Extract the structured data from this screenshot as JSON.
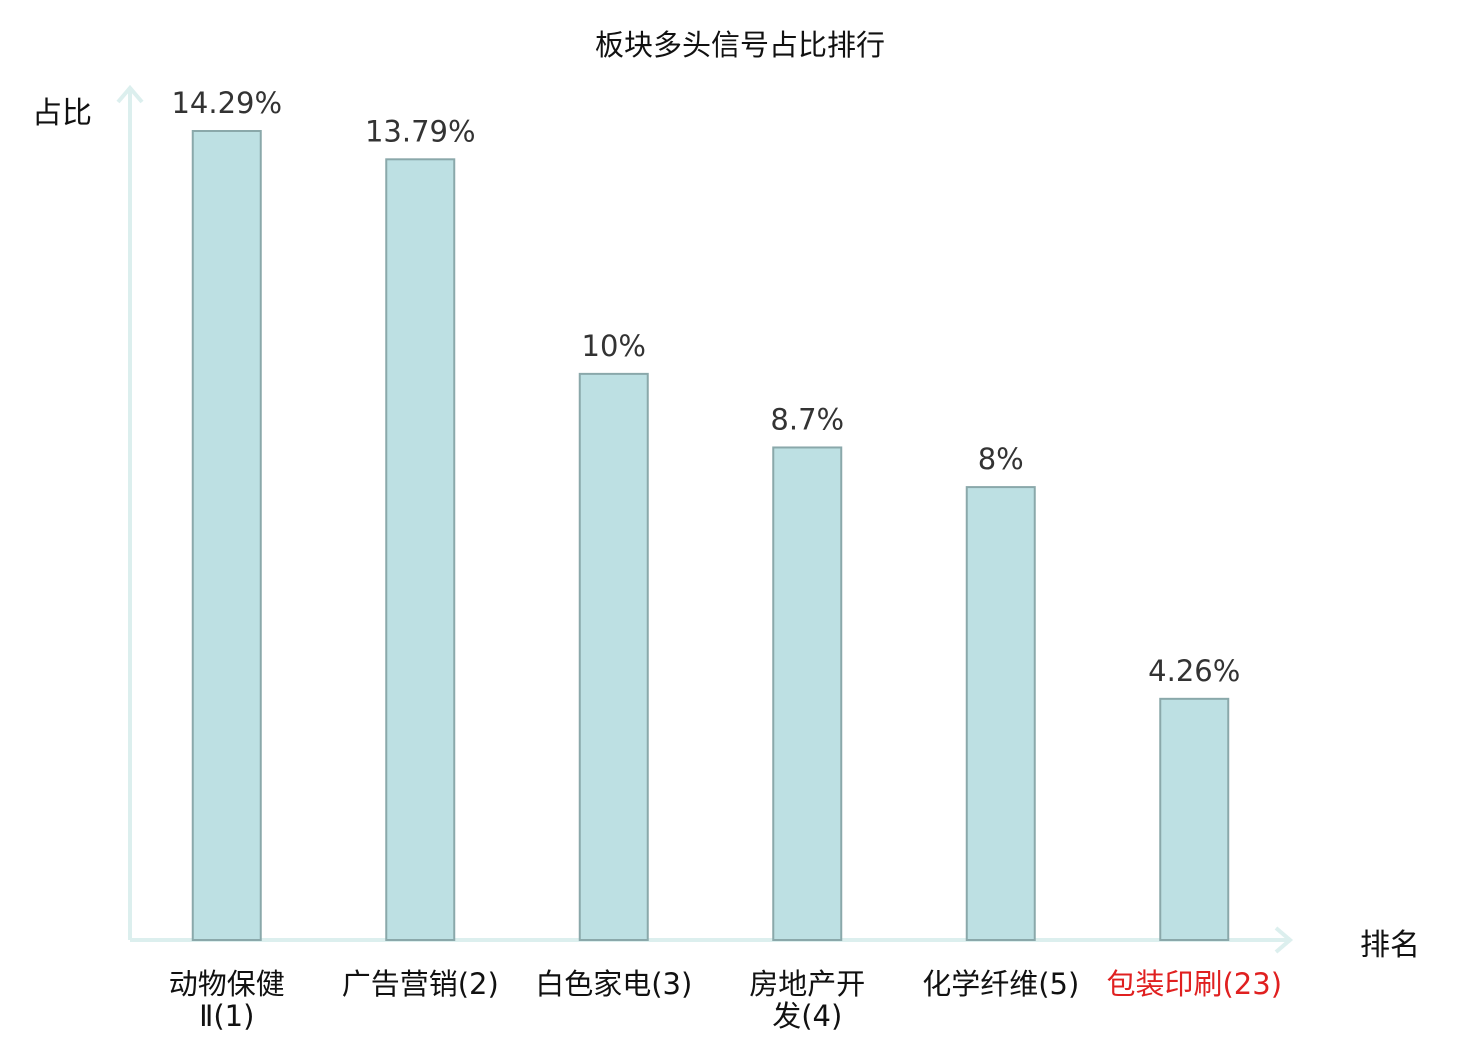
{
  "chart_data": {
    "type": "bar",
    "title": "板块多头信号占比排行",
    "ylabel": "占比",
    "xlabel": "排名",
    "categories": [
      {
        "name": "动物保健Ⅱ",
        "rank": "(1)",
        "lines": [
          "动物保健",
          "Ⅱ(1)"
        ],
        "highlight": false
      },
      {
        "name": "广告营销",
        "rank": "(2)",
        "lines": [
          "广告营销(2)"
        ],
        "highlight": false
      },
      {
        "name": "白色家电",
        "rank": "(3)",
        "lines": [
          "白色家电(3)"
        ],
        "highlight": false
      },
      {
        "name": "房地产开发",
        "rank": "(4)",
        "lines": [
          "房地产开",
          "发(4)"
        ],
        "highlight": false
      },
      {
        "name": "化学纤维",
        "rank": "(5)",
        "lines": [
          "化学纤维(5)"
        ],
        "highlight": false
      },
      {
        "name": "包装印刷",
        "rank": "(23)",
        "lines": [
          "包装印刷(23)"
        ],
        "highlight": true
      }
    ],
    "values": [
      14.29,
      13.79,
      10,
      8.7,
      8,
      4.26
    ],
    "value_labels": [
      "14.29%",
      "13.79%",
      "10%",
      "8.7%",
      "8%",
      "4.26%"
    ],
    "ylim": [
      0,
      15
    ],
    "grid": false,
    "colors": {
      "bar_fill": "#bde0e3",
      "bar_stroke": "#8aa8aa",
      "axis": "#dcefee",
      "label_text": "#333333",
      "highlight_text": "#e02020"
    }
  }
}
